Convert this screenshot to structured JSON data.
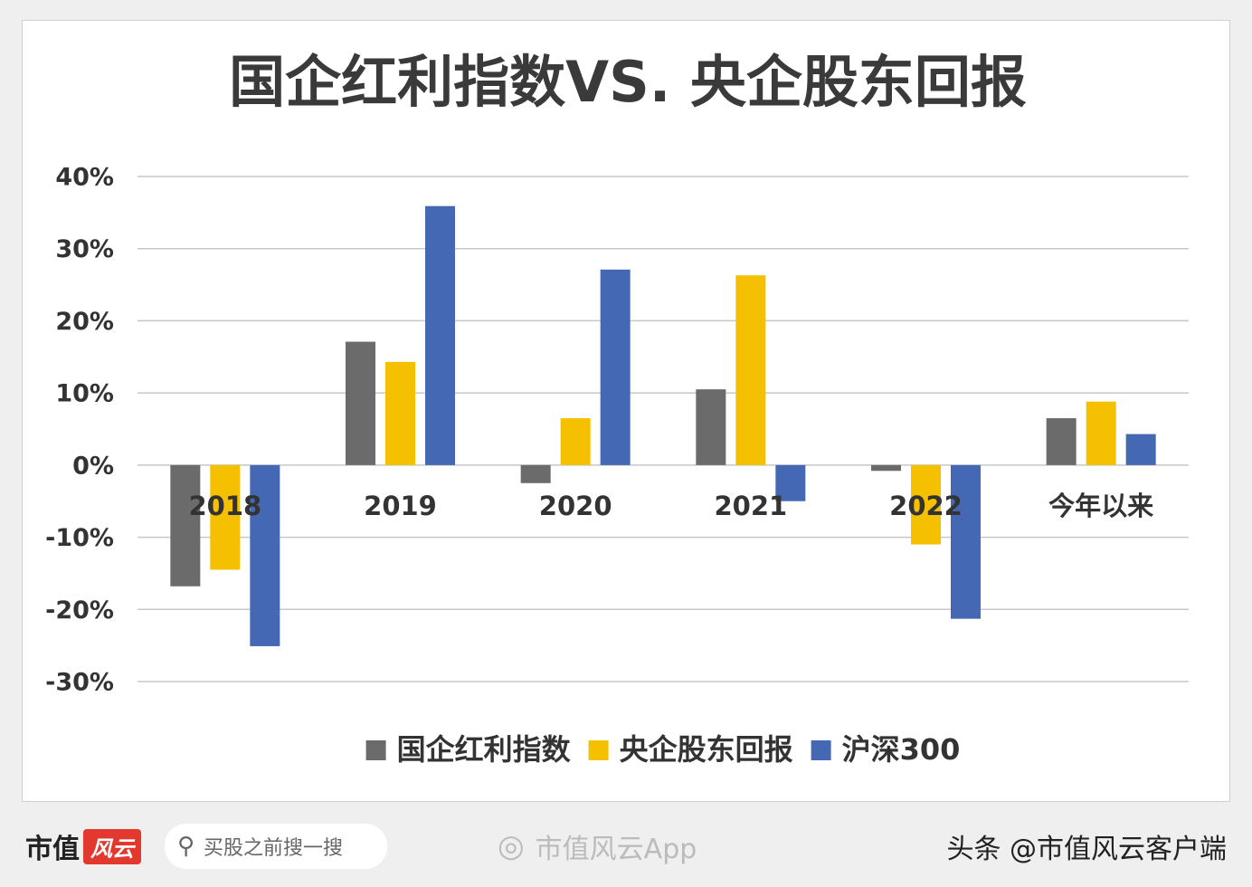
{
  "chart_data": {
    "type": "bar",
    "title": "国企红利指数VS. 央企股东回报",
    "categories": [
      "2018",
      "2019",
      "2020",
      "2021",
      "2022",
      "今年以来"
    ],
    "series": [
      {
        "name": "国企红利指数",
        "color": "#6b6b6b",
        "values": [
          -16.8,
          17.1,
          -2.5,
          10.5,
          -0.8,
          6.5
        ]
      },
      {
        "name": "央企股东回报",
        "color": "#f5c000",
        "values": [
          -14.5,
          14.3,
          6.5,
          26.3,
          -11.0,
          8.8
        ]
      },
      {
        "name": "沪深300",
        "color": "#4468b4",
        "values": [
          -25.1,
          35.9,
          27.1,
          -5.0,
          -21.3,
          4.3
        ]
      }
    ],
    "ylim": [
      -30,
      40
    ],
    "yticks": [
      {
        "value": -30,
        "label": "-30%"
      },
      {
        "value": -20,
        "label": "-20%"
      },
      {
        "value": -10,
        "label": "-10%"
      },
      {
        "value": 0,
        "label": "0%"
      },
      {
        "value": 10,
        "label": "10%"
      },
      {
        "value": 20,
        "label": "20%"
      },
      {
        "value": 30,
        "label": "30%"
      },
      {
        "value": 40,
        "label": "40%"
      }
    ],
    "grid": true,
    "legend": "bottom"
  },
  "footer": {
    "brand": "市值",
    "brand_mark": "风云",
    "search": "买股之前搜一搜",
    "app": "市值风云App",
    "source": "头条 @市值风云客户端"
  }
}
